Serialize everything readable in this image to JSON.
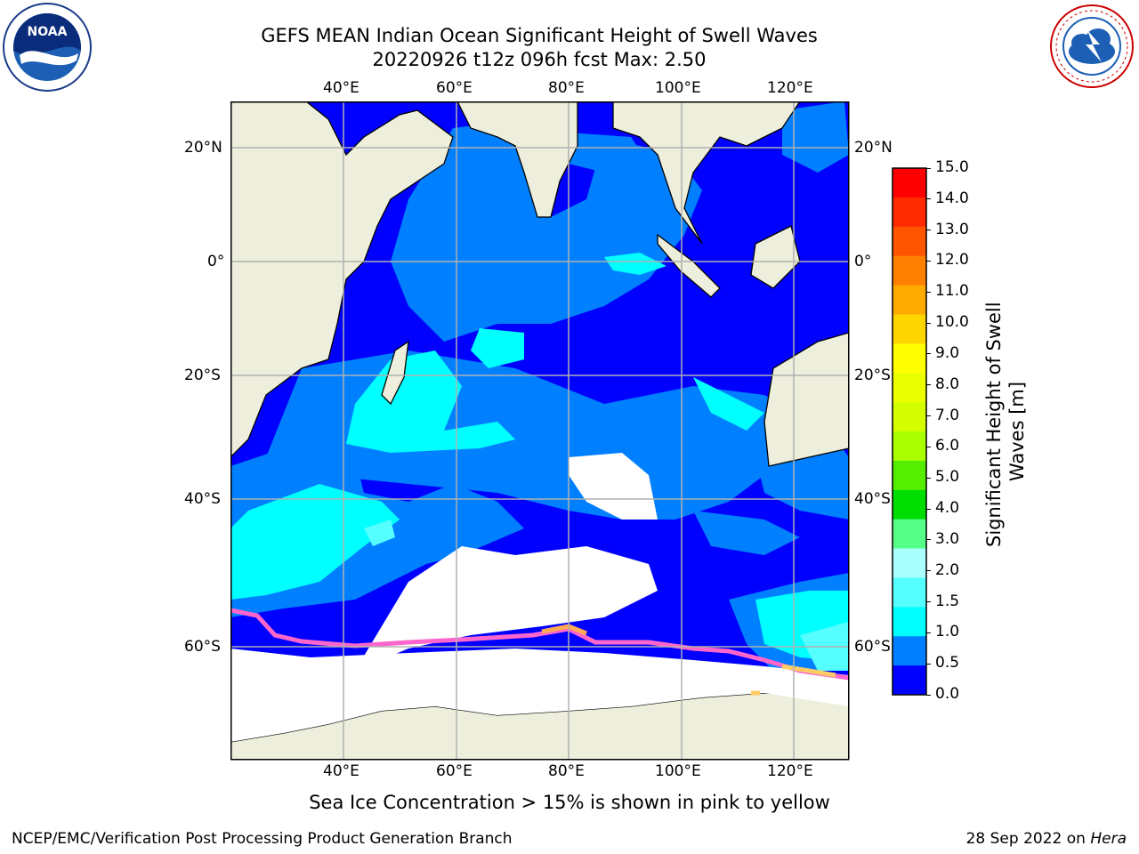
{
  "title": {
    "line1": "GEFS MEAN Indian Ocean Significant Height of Swell Waves",
    "line2": "20220926 t12z 096h fcst   Max: 2.50"
  },
  "logos": {
    "left": {
      "name": "noaa-logo",
      "text": "NOAA"
    },
    "right": {
      "name": "nws-logo",
      "text": "NATIONAL WEATHER SERVICE"
    }
  },
  "map": {
    "lon_ticks": [
      "40°E",
      "60°E",
      "80°E",
      "100°E",
      "120°E"
    ],
    "lat_ticks_left": [
      "20°N",
      "0°",
      "20°S",
      "40°S",
      "60°S"
    ],
    "lat_ticks_right": [
      "20°N",
      "0°",
      "20°S",
      "40°S",
      "60°S"
    ],
    "lon_range": [
      20,
      130
    ],
    "lat_range": [
      -75,
      27
    ],
    "colors": {
      "land": "#eeeedc",
      "ocean_low": "#0000ff",
      "ice": "#ffffff",
      "grid": "#b0b0b0",
      "sea_ice_edge": "#ff66cc"
    }
  },
  "colorbar": {
    "label": "Significant Height of Swell Waves [m]",
    "label_line1": "Significant Height of Swell",
    "label_line2": "Waves [m]",
    "ticks": [
      "15.0",
      "14.0",
      "13.0",
      "12.0",
      "11.0",
      "10.0",
      "9.0",
      "8.0",
      "7.0",
      "6.0",
      "5.0",
      "4.0",
      "3.0",
      "2.0",
      "1.5",
      "1.0",
      "0.5",
      "0.0"
    ],
    "colors_top_to_bottom": [
      "#ff0000",
      "#ff2a00",
      "#ff5500",
      "#ff8000",
      "#ffaa00",
      "#ffd500",
      "#ffff00",
      "#eaff00",
      "#d5ff00",
      "#aaff00",
      "#55ee00",
      "#00dd00",
      "#55ff88",
      "#aaffff",
      "#55ffff",
      "#00ffff",
      "#0080ff",
      "#0000ff"
    ]
  },
  "footer": {
    "sea_ice_note": "Sea Ice Concentration > 15% is shown in pink to yellow",
    "left": "NCEP/EMC/Verification Post Processing Product Generation Branch",
    "right_prefix": "28 Sep 2022 on ",
    "right_host": "Hera"
  }
}
